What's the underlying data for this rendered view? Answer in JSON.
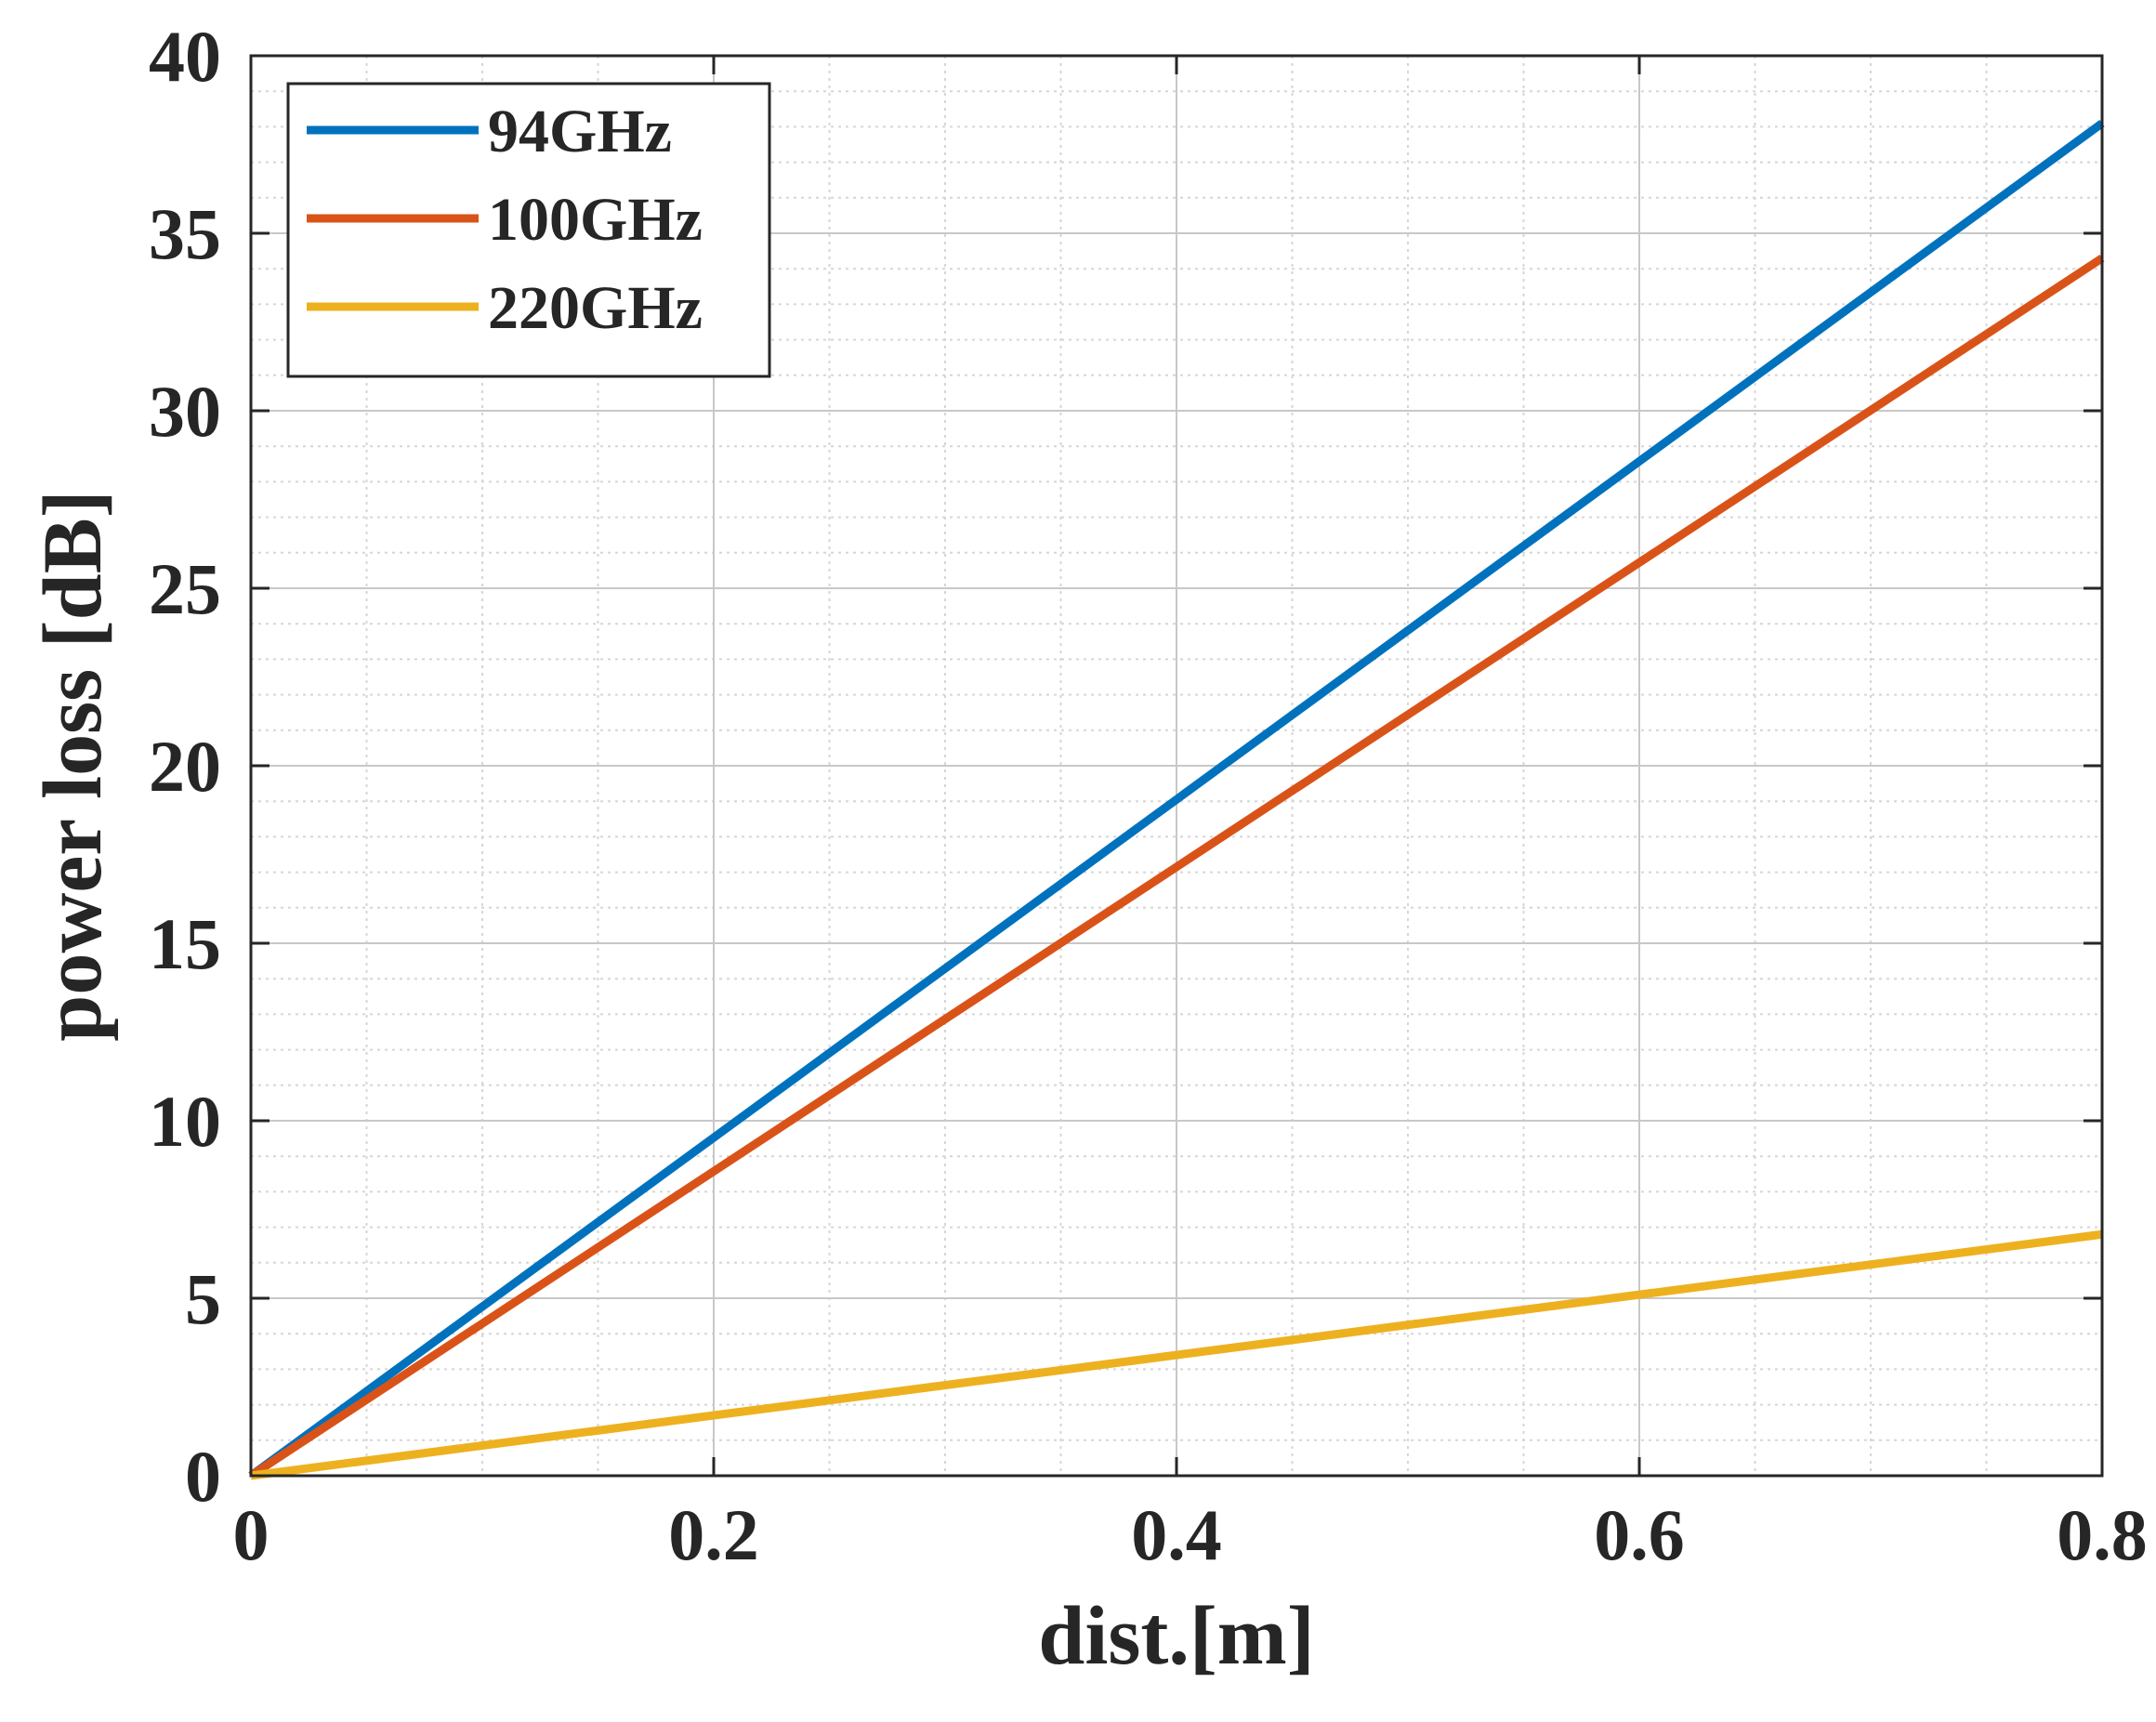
{
  "chart_data": {
    "type": "line",
    "title": "",
    "xlabel": "dist.[m]",
    "ylabel": "power loss [dB]",
    "xlim": [
      0,
      0.8
    ],
    "ylim": [
      0,
      40
    ],
    "xticks": [
      0,
      0.2,
      0.4,
      0.6,
      0.8
    ],
    "xtick_labels": [
      "0",
      "0.2",
      "0.4",
      "0.6",
      "0.8"
    ],
    "yticks": [
      0,
      5,
      10,
      15,
      20,
      25,
      30,
      35,
      40
    ],
    "ytick_labels": [
      "0",
      "5",
      "10",
      "15",
      "20",
      "25",
      "30",
      "35",
      "40"
    ],
    "grid": true,
    "minor_grid": true,
    "legend_position": "top-left",
    "series": [
      {
        "name": "94GHz",
        "color": "#0072BD",
        "x": [
          0,
          0.8
        ],
        "y": [
          0,
          38.1
        ]
      },
      {
        "name": "100GHz",
        "color": "#D95319",
        "x": [
          0,
          0.8
        ],
        "y": [
          0,
          34.3
        ]
      },
      {
        "name": "220GHz",
        "color": "#EDB120",
        "x": [
          0,
          0.8
        ],
        "y": [
          0,
          6.8
        ]
      }
    ]
  }
}
